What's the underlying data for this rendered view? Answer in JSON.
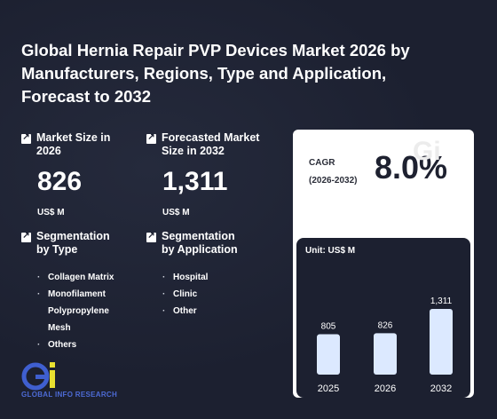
{
  "title": "Global Hernia Repair PVP Devices Market 2026 by Manufacturers, Regions, Type and Application, Forecast to 2032",
  "market_size": {
    "label": "Market Size in 2026",
    "value": "826",
    "unit": "US$ M"
  },
  "forecast": {
    "label": "Forecasted Market Size in 2032",
    "value": "1,311",
    "unit": "US$ M"
  },
  "seg_type": {
    "label": "Segmentation by Type",
    "items": [
      "Collagen Matrix",
      "Monofilament",
      "Polypropylene",
      "Mesh",
      "Others"
    ]
  },
  "seg_app": {
    "label": "Segmentation by Application",
    "items": [
      "Hospital",
      "Clinic",
      "Other"
    ]
  },
  "cagr": {
    "label_line1": "CAGR",
    "label_line2": "(2026-2032)",
    "value": "8.0%"
  },
  "chart_unit": "Unit: US$ M",
  "logo_text": "GLOBAL INFO RESEARCH",
  "colors": {
    "background": "#1c2030",
    "bar": "#dce9ff",
    "card": "#ffffff",
    "logo_blue": "#4d6bd6",
    "logo_yellow": "#e8e030"
  },
  "chart_data": {
    "type": "bar",
    "categories": [
      "2025",
      "2026",
      "2032"
    ],
    "values": [
      805,
      826,
      1311
    ],
    "value_labels": [
      "805",
      "826",
      "1,311"
    ],
    "title": "",
    "xlabel": "",
    "ylabel": "Unit: US$ M",
    "ylim": [
      0,
      1311
    ],
    "grid": false
  }
}
